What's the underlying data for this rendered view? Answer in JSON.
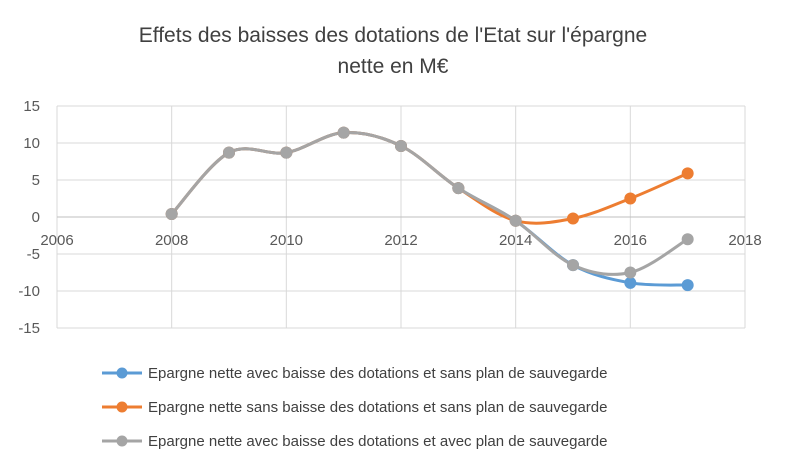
{
  "chart_data": {
    "type": "line",
    "title_lines": [
      "Effets des baisses des dotations de l'Etat sur l'épargne",
      "nette en M€"
    ],
    "xlabel": "",
    "ylabel": "",
    "xlim": [
      2006,
      2018
    ],
    "ylim": [
      -15,
      15
    ],
    "x_ticks": [
      2006,
      2008,
      2010,
      2012,
      2014,
      2016,
      2018
    ],
    "y_ticks": [
      15,
      10,
      5,
      0,
      -5,
      -10,
      -15
    ],
    "grid": true,
    "smooth": true,
    "legend_position": "bottom",
    "series": [
      {
        "name": "Epargne nette avec baisse des dotations et sans plan de sauvegarde",
        "color": "#5b9bd5",
        "x": [
          2008,
          2009,
          2010,
          2011,
          2012,
          2013,
          2014,
          2015,
          2016,
          2017
        ],
        "y": [
          0.4,
          8.7,
          8.7,
          11.4,
          9.6,
          3.9,
          -0.5,
          -6.5,
          -8.9,
          -9.2
        ]
      },
      {
        "name": "Epargne nette sans baisse des dotations et sans plan de sauvegarde",
        "color": "#ed7d31",
        "x": [
          2008,
          2009,
          2010,
          2011,
          2012,
          2013,
          2014,
          2015,
          2016,
          2017
        ],
        "y": [
          0.4,
          8.7,
          8.7,
          11.4,
          9.6,
          3.9,
          -0.5,
          -0.2,
          2.5,
          5.9
        ]
      },
      {
        "name": "Epargne nette avec baisse des dotations et avec plan de sauvegarde",
        "color": "#a5a5a5",
        "x": [
          2008,
          2009,
          2010,
          2011,
          2012,
          2013,
          2014,
          2015,
          2016,
          2017
        ],
        "y": [
          0.4,
          8.7,
          8.7,
          11.4,
          9.6,
          3.9,
          -0.5,
          -6.5,
          -7.5,
          -3.0
        ]
      }
    ]
  }
}
